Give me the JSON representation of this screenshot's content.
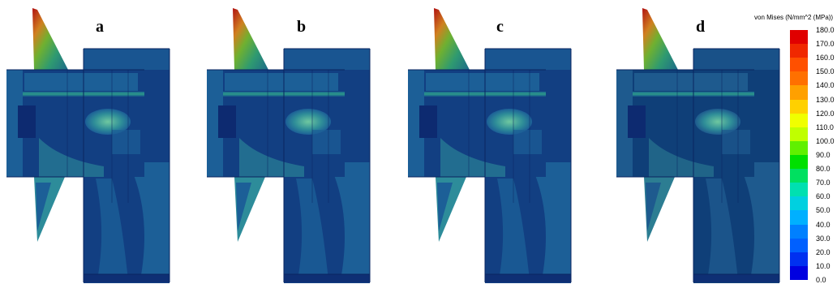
{
  "panels": [
    {
      "label": "a"
    },
    {
      "label": "b"
    },
    {
      "label": "c"
    },
    {
      "label": "d"
    }
  ],
  "legend": {
    "title": "von Mises (N/mm^2 (MPa))",
    "ticks": [
      "180.0",
      "170.0",
      "160.0",
      "150.0",
      "140.0",
      "130.0",
      "120.0",
      "110.0",
      "100.0",
      "90.0",
      "80.0",
      "70.0",
      "60.0",
      "50.0",
      "40.0",
      "30.0",
      "20.0",
      "10.0",
      "0.0"
    ],
    "colors": [
      "#e00000",
      "#f02800",
      "#ff5000",
      "#ff7000",
      "#ffa000",
      "#ffd000",
      "#f0ff00",
      "#c0ff00",
      "#60f000",
      "#00e000",
      "#00e060",
      "#00e0b0",
      "#00d0e0",
      "#00b0ff",
      "#0080ff",
      "#0060ff",
      "#0030f0",
      "#0000e0"
    ]
  }
}
